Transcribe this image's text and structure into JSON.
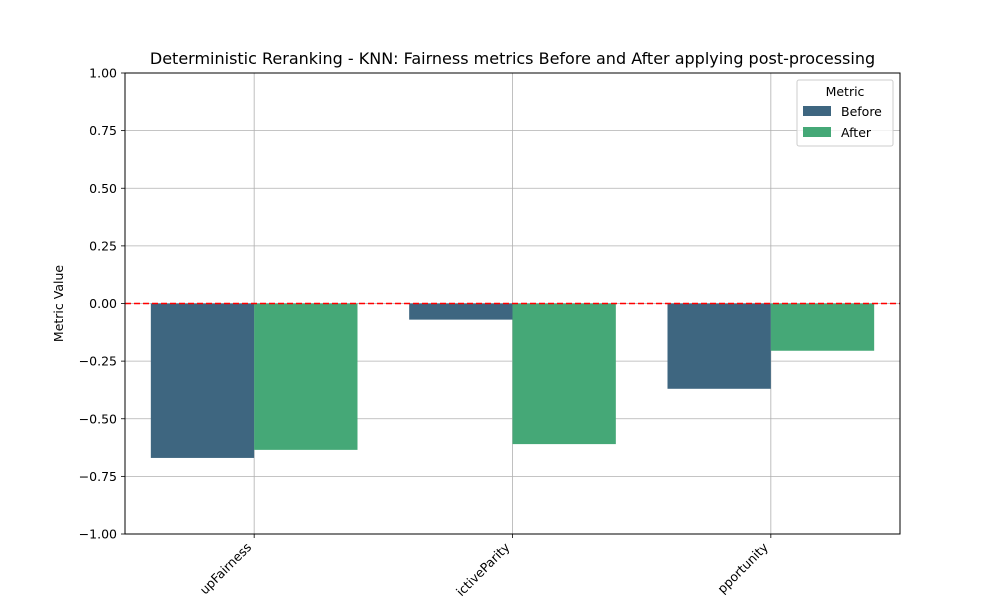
{
  "chart_data": {
    "type": "bar",
    "title": "Deterministic Reranking - KNN: Fairness metrics Before and After applying post-processing",
    "xlabel": "",
    "ylabel": "Metric Value",
    "categories": [
      "upFairness",
      "ictiveParity",
      "pportunity"
    ],
    "series": [
      {
        "name": "Before",
        "values": [
          -0.67,
          -0.07,
          -0.37
        ],
        "color": "#3e6680"
      },
      {
        "name": "After",
        "values": [
          -0.635,
          -0.61,
          -0.205
        ],
        "color": "#45a877"
      }
    ],
    "ylim": [
      -1.0,
      1.0
    ],
    "yticks": [
      1.0,
      0.75,
      0.5,
      0.25,
      0.0,
      -0.25,
      -0.5,
      -0.75,
      -1.0
    ],
    "ytick_labels": [
      "1.00",
      "0.75",
      "0.50",
      "0.25",
      "0.00",
      "−0.25",
      "−0.50",
      "−0.75",
      "−1.00"
    ],
    "grid": true,
    "reference_line": {
      "y": 0.0,
      "color": "#ff0000",
      "style": "dashed"
    },
    "legend": {
      "title": "Metric",
      "placement": "top-right"
    }
  }
}
